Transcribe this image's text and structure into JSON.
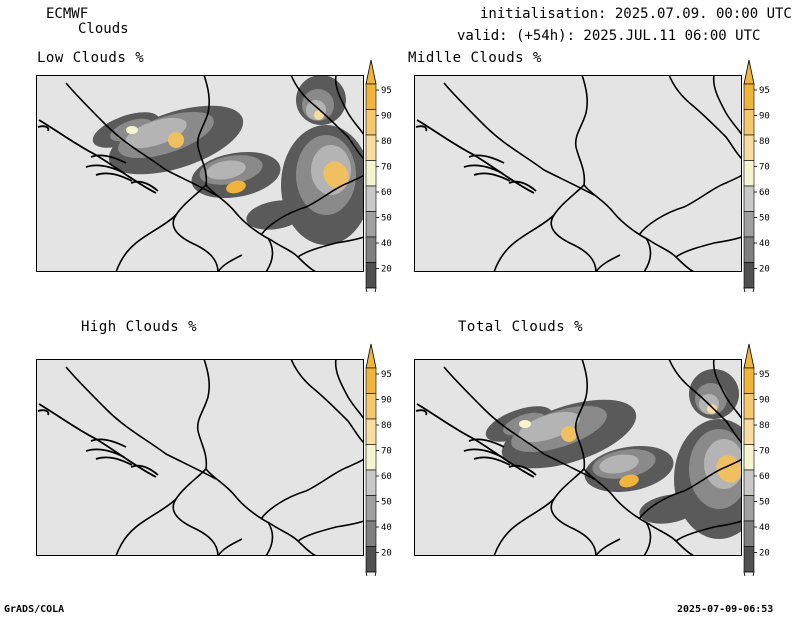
{
  "header": {
    "model": "ECMWF",
    "field": "Clouds",
    "init": "initialisation: 2025.07.09. 00:00 UTC",
    "valid": "valid: (+54h): 2025.JUL.11 06:00 UTC"
  },
  "panels": [
    {
      "title": "Low Clouds %",
      "intensity": "high"
    },
    {
      "title": "Midlle Clouds %",
      "intensity": "none"
    },
    {
      "title": "High Clouds %",
      "intensity": "none"
    },
    {
      "title": "Total Clouds %",
      "intensity": "high"
    }
  ],
  "colorbar": {
    "levels": [
      "95",
      "90",
      "80",
      "70",
      "60",
      "50",
      "40",
      "20"
    ],
    "colors": [
      "#f0b43c",
      "#f5c870",
      "#f8dca0",
      "#f5f5d0",
      "#c8c8c8",
      "#a0a0a0",
      "#808080",
      "#505050"
    ],
    "upper_arrow_color": "#f0b43c",
    "lower_arrow_color": "#f0f0f0"
  },
  "colors": {
    "map_bg": "#e4e4e4",
    "border": "#000000"
  },
  "footer": {
    "left": "GrADS/COLA",
    "right": "2025-07-09-06:53"
  }
}
